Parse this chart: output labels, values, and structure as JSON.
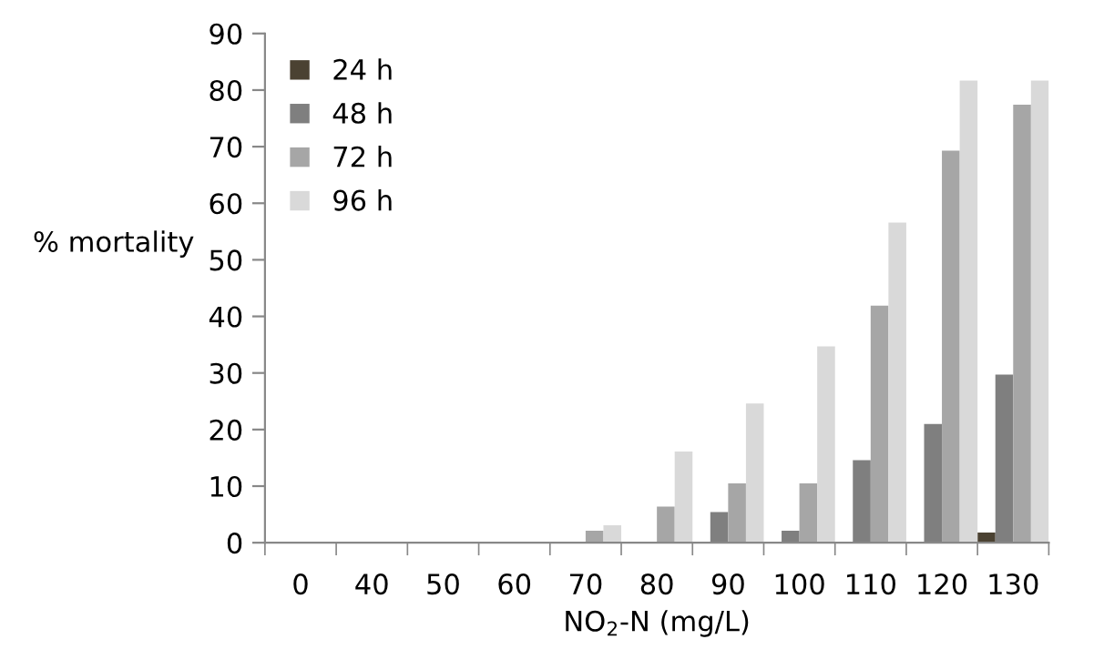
{
  "chart_data": {
    "type": "bar",
    "xlabel": "NO$_{2}$-N (mg/L)",
    "ylabel": "% mortality",
    "categories": [
      "0",
      "40",
      "50",
      "60",
      "70",
      "80",
      "90",
      "100",
      "110",
      "120",
      "130"
    ],
    "series": [
      {
        "name": "24 h",
        "color": "#4b4232",
        "values": [
          0,
          0,
          0,
          0,
          0,
          0,
          0,
          0,
          0,
          0,
          1.8
        ]
      },
      {
        "name": "48 h",
        "color": "#7f7f7f",
        "values": [
          0,
          0,
          0,
          0,
          0,
          0,
          5.4,
          2.1,
          14.6,
          21.0,
          29.7
        ]
      },
      {
        "name": "72 h",
        "color": "#a6a6a6",
        "values": [
          0,
          0,
          0,
          0,
          2.1,
          6.4,
          10.5,
          10.5,
          41.9,
          69.3,
          77.4
        ]
      },
      {
        "name": "96 h",
        "color": "#d9d9d9",
        "values": [
          0,
          0,
          0,
          0,
          3.1,
          16.1,
          24.6,
          34.7,
          56.6,
          81.7,
          81.7
        ]
      }
    ],
    "ylim": [
      0,
      90
    ],
    "yticks": [
      0,
      10,
      20,
      30,
      40,
      50,
      60,
      70,
      80,
      90
    ],
    "grid": false,
    "legend": "top left"
  }
}
